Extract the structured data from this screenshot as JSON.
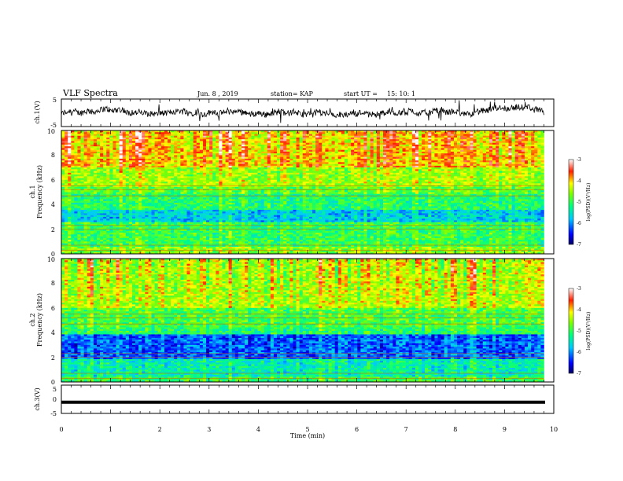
{
  "header": {
    "title": "VLF Spectra",
    "date": "Jun. 8 , 2019",
    "station": "station= KAP",
    "start_label": "start UT =",
    "start_time": "15: 10: 1"
  },
  "chart_data": [
    {
      "type": "line",
      "name": "ch1-waveform",
      "ylabel": "ch.1(V)",
      "ylim": [
        -5,
        5
      ],
      "yticks": [
        "5",
        "-5"
      ],
      "xlim": [
        0,
        10
      ]
    },
    {
      "type": "heatmap",
      "name": "ch1-spectrogram",
      "ylabel_channel": "ch.1",
      "ylabel": "Frequency (kHz)",
      "xlim": [
        0,
        9.8
      ],
      "ylim": [
        0,
        10
      ],
      "yticks": [
        "0",
        "2",
        "4",
        "6",
        "8",
        "10"
      ],
      "colorbar": {
        "label": "log(PSD)(V²/Hz)",
        "ticks": [
          "-3",
          "-4",
          "-5",
          "-6",
          "-7"
        ],
        "range": [
          -7,
          -3
        ]
      }
    },
    {
      "type": "heatmap",
      "name": "ch2-spectrogram",
      "ylabel_channel": "ch.2",
      "ylabel": "Frequency (kHz)",
      "xlim": [
        0,
        9.8
      ],
      "ylim": [
        0,
        10
      ],
      "yticks": [
        "0",
        "2",
        "4",
        "6",
        "8",
        "10"
      ],
      "colorbar": {
        "label": "log(PSD)(V²/Hz)",
        "ticks": [
          "-3",
          "-4",
          "-5",
          "-6",
          "-7"
        ],
        "range": [
          -7,
          -3
        ]
      }
    },
    {
      "type": "line",
      "name": "ch3-waveform",
      "ylabel": "ch.3(V)",
      "ylim": [
        -5,
        5
      ],
      "yticks": [
        "5",
        "0",
        "-5"
      ],
      "constant_value": -0.5,
      "xlim": [
        0,
        10
      ]
    }
  ],
  "x_axis": {
    "label": "Time (min)",
    "ticks": [
      "0",
      "1",
      "2",
      "3",
      "4",
      "5",
      "6",
      "7",
      "8",
      "9",
      "10"
    ]
  },
  "colors": {
    "axis": "#000000",
    "scale": [
      "#000080",
      "#0000ff",
      "#00ffff",
      "#00ff00",
      "#ffff00",
      "#ff0000",
      "#ffffff"
    ]
  }
}
